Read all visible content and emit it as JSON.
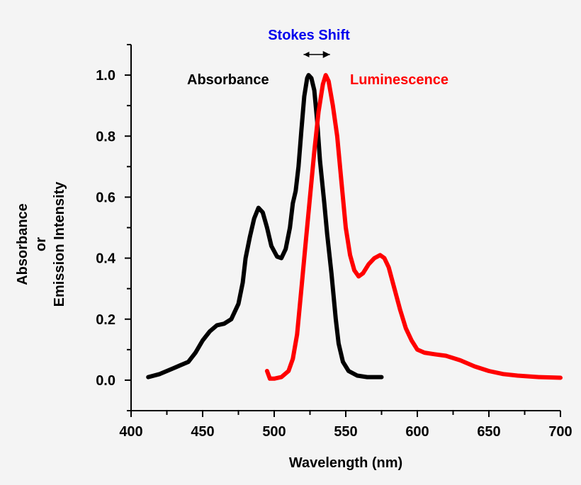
{
  "chart_data": {
    "type": "line",
    "title": "",
    "xlabel": "Wavelength (nm)",
    "ylabel_lines": [
      "Absorbance",
      "or",
      "Emission Intensity"
    ],
    "xlim": [
      400,
      700
    ],
    "ylim": [
      -0.1,
      1.1
    ],
    "x_ticks": [
      "400",
      "450",
      "500",
      "550",
      "600",
      "650",
      "700"
    ],
    "y_ticks": [
      "0.0",
      "0.2",
      "0.4",
      "0.6",
      "0.8",
      "1.0"
    ],
    "grid": false,
    "annotations": {
      "stokes_label": "Stokes Shift",
      "stokes_range": [
        523,
        536
      ],
      "stokes_color": "#0000ee"
    },
    "series": [
      {
        "name": "Absorbance",
        "color": "#000000",
        "x": [
          412,
          420,
          430,
          440,
          445,
          450,
          455,
          460,
          465,
          470,
          475,
          478,
          480,
          483,
          486,
          489,
          492,
          495,
          498,
          502,
          505,
          508,
          511,
          513,
          515,
          517,
          519,
          521,
          523,
          524,
          526,
          528,
          530,
          532,
          535,
          537,
          540,
          543,
          545,
          548,
          552,
          558,
          565,
          575
        ],
        "y": [
          0.01,
          0.02,
          0.04,
          0.06,
          0.09,
          0.13,
          0.16,
          0.18,
          0.185,
          0.2,
          0.25,
          0.32,
          0.4,
          0.47,
          0.53,
          0.565,
          0.55,
          0.5,
          0.44,
          0.405,
          0.4,
          0.43,
          0.5,
          0.58,
          0.62,
          0.7,
          0.82,
          0.93,
          0.99,
          1.0,
          0.99,
          0.95,
          0.85,
          0.72,
          0.58,
          0.48,
          0.35,
          0.2,
          0.12,
          0.06,
          0.03,
          0.015,
          0.01,
          0.01
        ]
      },
      {
        "name": "Luminescence",
        "color": "#ff0000",
        "x": [
          495,
          497,
          500,
          505,
          510,
          513,
          516,
          519,
          522,
          525,
          528,
          531,
          534,
          536,
          538,
          541,
          544,
          547,
          550,
          553,
          556,
          559,
          562,
          566,
          570,
          574,
          577,
          580,
          584,
          588,
          592,
          596,
          600,
          605,
          612,
          620,
          630,
          640,
          650,
          660,
          670,
          685,
          700
        ],
        "y": [
          0.03,
          0.005,
          0.005,
          0.01,
          0.03,
          0.07,
          0.15,
          0.3,
          0.45,
          0.6,
          0.75,
          0.88,
          0.97,
          1.0,
          0.98,
          0.9,
          0.8,
          0.65,
          0.5,
          0.41,
          0.36,
          0.34,
          0.35,
          0.38,
          0.4,
          0.41,
          0.4,
          0.37,
          0.3,
          0.23,
          0.17,
          0.13,
          0.1,
          0.09,
          0.085,
          0.08,
          0.065,
          0.045,
          0.03,
          0.02,
          0.015,
          0.01,
          0.008
        ]
      }
    ]
  }
}
